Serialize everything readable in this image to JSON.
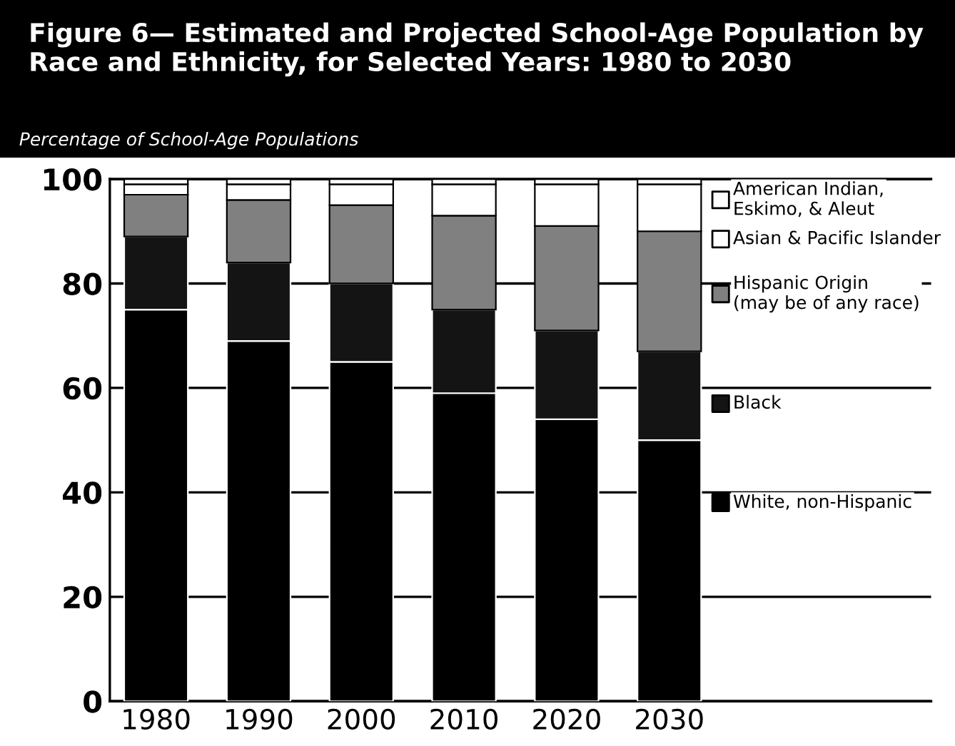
{
  "chart_data": {
    "type": "bar",
    "stacked": true,
    "title": "Figure 6— Estimated and Projected School-Age Population by Race and Ethnicity, for Selected Years: 1980 to 2030",
    "ylabel": "Percentage of School-Age Populations",
    "categories": [
      "1980",
      "1990",
      "2000",
      "2010",
      "2020",
      "2030"
    ],
    "series": [
      {
        "name": "White, non-Hispanic",
        "color": "#000000",
        "values": [
          75,
          69,
          65,
          59,
          54,
          50
        ]
      },
      {
        "name": "Black",
        "color": "#141414",
        "values": [
          14,
          15,
          15,
          16,
          17,
          17
        ]
      },
      {
        "name": "Hispanic Origin\n(may be of any race)",
        "color": "#808080",
        "values": [
          8,
          12,
          15,
          18,
          20,
          23
        ]
      },
      {
        "name": "Asian & Pacific Islander",
        "color": "#ffffff",
        "values": [
          2,
          3,
          4,
          6,
          8,
          9
        ]
      },
      {
        "name": "American Indian,\nEskimo, & Aleut",
        "color": "#ffffff",
        "values": [
          1,
          1,
          1,
          1,
          1,
          1
        ]
      }
    ],
    "ylim": [
      0,
      100
    ],
    "yticks": [
      0,
      20,
      40,
      60,
      80,
      100
    ],
    "grid": "y",
    "legend": "right"
  }
}
